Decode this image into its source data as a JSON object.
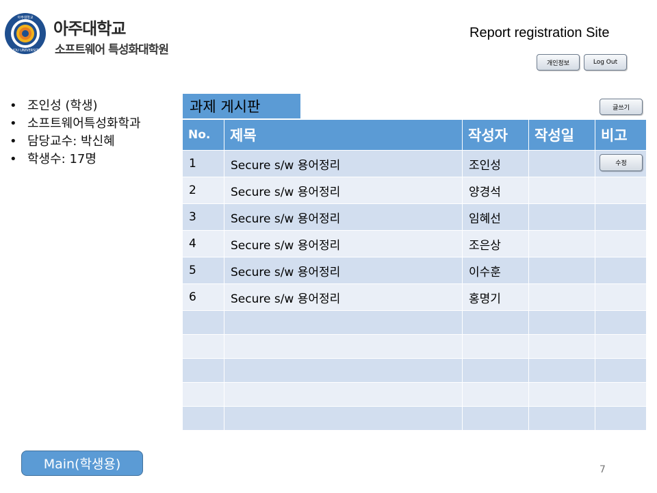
{
  "header": {
    "logo_icon": "university-seal-icon",
    "university_name": "아주대학교",
    "graduate_school": "소프트웨어 특성화대학원",
    "site_title": "Report registration Site",
    "profile_button": "개인정보",
    "logout_button": "Log Out"
  },
  "user_info": {
    "items": [
      "조인성 (학생)",
      "소프트웨어특성화학과",
      "담당교수: 박신혜",
      "학생수: 17명"
    ]
  },
  "board": {
    "title": "과제 게시판",
    "write_button": "글쓰기",
    "edit_button": "수정",
    "columns": [
      "No.",
      "제목",
      "작성자",
      "작성일",
      "비고"
    ],
    "rows": [
      {
        "no": "1",
        "title": "Secure s/w 용어정리",
        "author": "조인성",
        "date": "",
        "note": ""
      },
      {
        "no": "2",
        "title": "Secure s/w 용어정리",
        "author": "양경석",
        "date": "",
        "note": ""
      },
      {
        "no": "3",
        "title": "Secure s/w 용어정리",
        "author": "임혜선",
        "date": "",
        "note": ""
      },
      {
        "no": "4",
        "title": "Secure s/w 용어정리",
        "author": "조은상",
        "date": "",
        "note": ""
      },
      {
        "no": "5",
        "title": "Secure s/w 용어정리",
        "author": "이수훈",
        "date": "",
        "note": ""
      },
      {
        "no": "6",
        "title": "Secure s/w 용어정리",
        "author": "홍명기",
        "date": "",
        "note": ""
      }
    ],
    "empty_rows": 5
  },
  "footer": {
    "main_button": "Main(학생용)",
    "page_number": "7"
  },
  "colors": {
    "accent": "#5b9bd5",
    "row_odd": "#d2deef",
    "row_even": "#eaeff7"
  }
}
